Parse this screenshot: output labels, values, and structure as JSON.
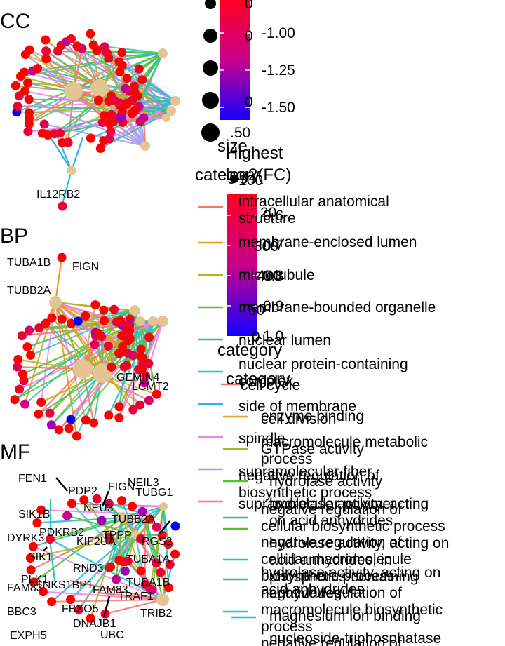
{
  "chart_data": [
    {
      "panel": "CC",
      "type": "network",
      "gene_labels": [
        "IL12RB2"
      ]
    },
    {
      "panel": "BP",
      "type": "network",
      "gene_labels": [
        "TUBA1B",
        "FIGN",
        "TUBB2A",
        "GEMIN4",
        "LCMT2"
      ]
    },
    {
      "panel": "MF",
      "type": "network",
      "gene_labels": [
        "FEN1",
        "PDP2",
        "FIGN",
        "NEIL3",
        "TUBG1",
        "NEU3",
        "SIK1B",
        "PDKRB2",
        "TUBB2A",
        "DYRK3",
        "KIF2UA",
        "TPPP",
        "RGS2",
        "SIK1",
        "RND3",
        "TUBA1A",
        "PLK1",
        "FAM83",
        "TNKS1BP1",
        "FAM83",
        "TUBA1B",
        "TRAF1",
        "BBC3",
        "FBXO5",
        "TRIB2",
        "DNAJB1",
        "EXPH5",
        "UBC"
      ]
    }
  ],
  "legends": {
    "cc_colorbar_ticks": [
      "-1.00",
      "-1.25",
      "-1.50"
    ],
    "cc_colorbar_partial_ticks": [
      "0",
      "0",
      "0"
    ],
    "cc_size_tail": ".50",
    "size_title": "size",
    "highest_title_line1": "Highest",
    "highest_title_line2": "log2(FC)",
    "category_title_overlap": "category",
    "fc_ticks": [
      "0.6",
      "0.7",
      "0.8",
      "0.9",
      "1.0"
    ],
    "size_partial_ticks": [
      "20",
      "300",
      "400",
      "50",
      "100",
      ".0"
    ],
    "cc_categories": [
      "intracellular anatomical",
      "structure",
      "membrane-enclosed lumen",
      "microtubule",
      "membrane-bounded organelle",
      "nuclear lumen",
      "nuclear protein-containing",
      "complex",
      "side of membrane",
      "spindle",
      "supramolecular fiber",
      "supramolecular polymer"
    ],
    "category_title": "category",
    "bp_categories": [
      "cell cycle",
      "cell division",
      "macromolecule metabolic",
      "process",
      "negative regulation of",
      "biosynthetic process",
      "negative regulation of",
      "cellular biosynthetic process",
      "negative regulation of",
      "cellular macromolecule",
      "biosynthetic process",
      "negative regulation of",
      "macromolecule biosynthetic",
      "process",
      "negative regulation of"
    ],
    "mf_categories": [
      "enzyme binding",
      "GTPase activity",
      "hydrolase activity",
      "hydrolase activity, acting",
      "on acid anhydrides",
      "hydrolase activity, acting on",
      "acid anhydrides, in",
      "phosphorus-containing",
      "anhydrides",
      "hydrolase activity, acting on",
      "acid anhydrides",
      "magnesium ion binding",
      "nucleoside-triphosphatase"
    ]
  },
  "colors": {
    "gene_low": "#0000ff",
    "gene_high": "#ff0000",
    "category_node": "#e5c494",
    "cat_intracellular": "#f8766d",
    "cat_membrane_lumen": "#e0a020",
    "cat_microtubule": "#b4b41e",
    "cat_membrane_organelle": "#58c02c",
    "cat_nuclear_lumen": "#2ec08c",
    "cat_nuclear_complex": "#22c4c8",
    "cat_side_membrane": "#2eb4ec",
    "cat_spindle": "#a4a0f4",
    "cat_fiber": "#ee82ee",
    "cat_polymer": "#ff6fb0"
  }
}
